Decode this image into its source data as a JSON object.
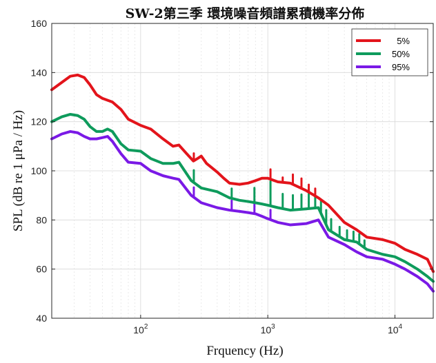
{
  "chart_data": {
    "type": "line",
    "title": "SW-2第三季 環境噪音頻譜累積機率分佈",
    "xlabel": "Frquency (Hz)",
    "ylabel": "SPL (dB re 1 μPa / Hz)",
    "xscale": "log",
    "xlim": [
      20,
      20000
    ],
    "ylim": [
      40,
      160
    ],
    "yticks": [
      40,
      60,
      80,
      100,
      120,
      140,
      160
    ],
    "xticks": [
      {
        "base": "10",
        "exp": "2"
      },
      {
        "base": "10",
        "exp": "3"
      },
      {
        "base": "10",
        "exp": "4"
      }
    ],
    "grid": "on",
    "legend_position": "top-right",
    "series": [
      {
        "name": "5%",
        "color": "#e3141b",
        "x": [
          20,
          24,
          28,
          32,
          36,
          40,
          45,
          50,
          60,
          70,
          80,
          100,
          120,
          150,
          180,
          200,
          230,
          260,
          280,
          300,
          330,
          400,
          450,
          500,
          600,
          700,
          800,
          900,
          1000,
          1200,
          1500,
          2000,
          2500,
          3000,
          4000,
          5000,
          6000,
          8000,
          10000,
          12000,
          15000,
          18000,
          20000
        ],
        "y": [
          133,
          136,
          138.5,
          139,
          138,
          135,
          131,
          129.5,
          128,
          125,
          121,
          118.5,
          117,
          113,
          110,
          110.5,
          107,
          104,
          105,
          106,
          103,
          99.5,
          97,
          95,
          94.5,
          95,
          96,
          97,
          97,
          95.5,
          95,
          92,
          89,
          86,
          79,
          76,
          73,
          72,
          70.5,
          68,
          66,
          64,
          59
        ]
      },
      {
        "name": "50%",
        "color": "#0e9b5c",
        "x": [
          20,
          24,
          28,
          32,
          36,
          40,
          45,
          50,
          55,
          60,
          70,
          80,
          100,
          120,
          150,
          180,
          200,
          250,
          300,
          400,
          500,
          600,
          700,
          800,
          900,
          1000,
          1200,
          1500,
          2000,
          2500,
          3000,
          4000,
          5000,
          6000,
          8000,
          10000,
          12000,
          15000,
          18000,
          20000
        ],
        "y": [
          120,
          122,
          123,
          122.5,
          121,
          118,
          116,
          116,
          117,
          116,
          111,
          108.5,
          108,
          105,
          103,
          103,
          103.5,
          96,
          93,
          91.5,
          89,
          88,
          87.5,
          87,
          86.5,
          86,
          85,
          84,
          84.5,
          85,
          76,
          72,
          71,
          68,
          66,
          65,
          63,
          60,
          57,
          55
        ]
      },
      {
        "name": "95%",
        "color": "#7a19e6",
        "x": [
          20,
          24,
          28,
          32,
          36,
          40,
          45,
          50,
          55,
          60,
          70,
          80,
          100,
          120,
          150,
          180,
          200,
          250,
          300,
          400,
          500,
          600,
          700,
          800,
          900,
          1000,
          1200,
          1500,
          2000,
          2500,
          3000,
          4000,
          5000,
          6000,
          8000,
          10000,
          12000,
          15000,
          18000,
          20000
        ],
        "y": [
          113,
          115,
          116,
          115.5,
          114,
          113,
          113,
          113.5,
          114,
          112,
          107,
          103.5,
          103,
          100,
          98,
          97,
          96.5,
          90,
          87,
          85,
          84,
          83.5,
          83,
          82.5,
          81.5,
          80.5,
          79,
          78,
          78.5,
          80,
          73,
          70,
          67,
          65,
          64,
          62,
          60,
          57,
          54,
          51
        ]
      }
    ],
    "peaks": [
      {
        "x": 262,
        "series": 0,
        "dy": 3
      },
      {
        "x": 262,
        "series": 1,
        "dy": 5
      },
      {
        "x": 262,
        "series": 2,
        "dy": 4
      },
      {
        "x": 520,
        "series": 1,
        "dy": 4
      },
      {
        "x": 520,
        "series": 2,
        "dy": 4
      },
      {
        "x": 785,
        "series": 1,
        "dy": 6
      },
      {
        "x": 785,
        "series": 2,
        "dy": 5
      },
      {
        "x": 1050,
        "series": 0,
        "dy": 4
      },
      {
        "x": 1050,
        "series": 1,
        "dy": 10
      },
      {
        "x": 1050,
        "series": 2,
        "dy": 4
      },
      {
        "x": 1310,
        "series": 0,
        "dy": 2
      },
      {
        "x": 1310,
        "series": 1,
        "dy": 6
      },
      {
        "x": 1575,
        "series": 0,
        "dy": 4
      },
      {
        "x": 1575,
        "series": 1,
        "dy": 6
      },
      {
        "x": 1840,
        "series": 0,
        "dy": 4
      },
      {
        "x": 1840,
        "series": 1,
        "dy": 6
      },
      {
        "x": 2100,
        "series": 0,
        "dy": 3
      },
      {
        "x": 2100,
        "series": 1,
        "dy": 8
      },
      {
        "x": 2360,
        "series": 0,
        "dy": 3
      },
      {
        "x": 2360,
        "series": 1,
        "dy": 5
      },
      {
        "x": 2620,
        "series": 1,
        "dy": 5
      },
      {
        "x": 2880,
        "series": 1,
        "dy": 6
      },
      {
        "x": 3150,
        "series": 1,
        "dy": 5
      },
      {
        "x": 3670,
        "series": 1,
        "dy": 4
      },
      {
        "x": 4200,
        "series": 1,
        "dy": 4
      },
      {
        "x": 4720,
        "series": 1,
        "dy": 4
      },
      {
        "x": 5240,
        "series": 1,
        "dy": 4
      },
      {
        "x": 5760,
        "series": 1,
        "dy": 3
      }
    ]
  }
}
